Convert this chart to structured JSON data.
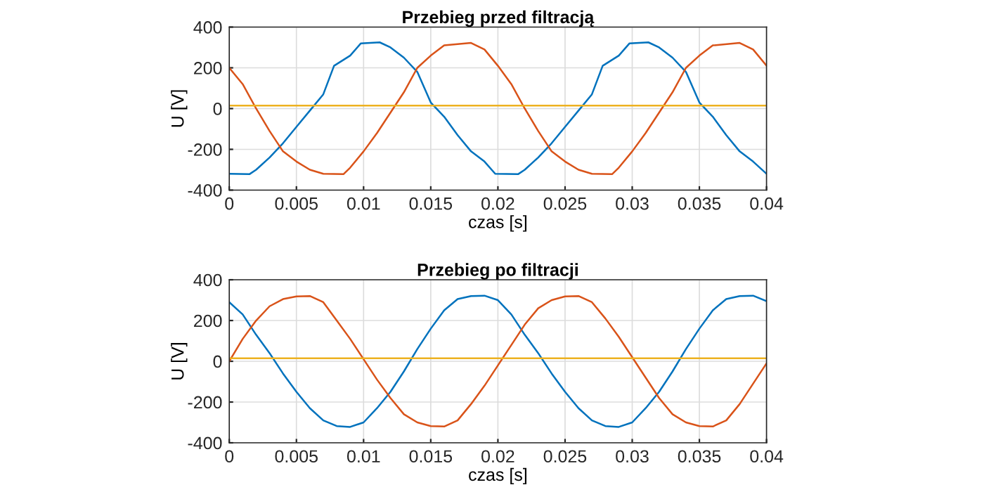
{
  "chart_data": [
    {
      "type": "line",
      "title": "Przebieg przed filtracją",
      "xlabel": "czas [s]",
      "ylabel": "U [V]",
      "xlim": [
        0,
        0.04
      ],
      "ylim": [
        -400,
        400
      ],
      "xticks": [
        0,
        0.005,
        0.01,
        0.015,
        0.02,
        0.025,
        0.03,
        0.035,
        0.04
      ],
      "yticks": [
        -400,
        -200,
        0,
        200,
        400
      ],
      "grid": true,
      "series": [
        {
          "color": "#0072bd",
          "x": [
            0,
            0.0015,
            0.002,
            0.003,
            0.004,
            0.005,
            0.006,
            0.007,
            0.0078,
            0.009,
            0.0098,
            0.0112,
            0.012,
            0.013,
            0.014,
            0.015,
            0.016,
            0.017,
            0.018,
            0.019,
            0.0198,
            0.0215,
            0.022,
            0.023,
            0.024,
            0.025,
            0.026,
            0.027,
            0.0278,
            0.029,
            0.0298,
            0.0312,
            0.032,
            0.033,
            0.034,
            0.035,
            0.036,
            0.037,
            0.038,
            0.039,
            0.04
          ],
          "values": [
            -320,
            -322,
            -300,
            -240,
            -170,
            -90,
            -10,
            70,
            210,
            260,
            320,
            325,
            300,
            250,
            180,
            30,
            -40,
            -130,
            -210,
            -260,
            -320,
            -322,
            -300,
            -240,
            -170,
            -90,
            -10,
            70,
            210,
            260,
            320,
            325,
            300,
            250,
            180,
            30,
            -40,
            -130,
            -210,
            -260,
            -320
          ]
        },
        {
          "color": "#d95319",
          "x": [
            0,
            0.001,
            0.002,
            0.003,
            0.004,
            0.005,
            0.006,
            0.007,
            0.0085,
            0.009,
            0.01,
            0.011,
            0.012,
            0.013,
            0.014,
            0.015,
            0.016,
            0.018,
            0.019,
            0.02,
            0.021,
            0.022,
            0.023,
            0.024,
            0.025,
            0.026,
            0.027,
            0.0285,
            0.029,
            0.03,
            0.031,
            0.032,
            0.033,
            0.034,
            0.035,
            0.036,
            0.038,
            0.039,
            0.04
          ],
          "values": [
            200,
            120,
            0,
            -110,
            -210,
            -260,
            -300,
            -320,
            -322,
            -290,
            -210,
            -120,
            -20,
            80,
            200,
            260,
            310,
            322,
            290,
            210,
            120,
            0,
            -110,
            -210,
            -260,
            -300,
            -320,
            -322,
            -290,
            -210,
            -120,
            -20,
            80,
            200,
            260,
            310,
            322,
            290,
            210
          ]
        },
        {
          "color": "#edb120",
          "x": [
            0,
            0.04
          ],
          "values": [
            15,
            15
          ]
        }
      ]
    },
    {
      "type": "line",
      "title": "Przebieg po filtracji",
      "xlabel": "czas [s]",
      "ylabel": "U [V]",
      "xlim": [
        0,
        0.04
      ],
      "ylim": [
        -400,
        400
      ],
      "xticks": [
        0,
        0.005,
        0.01,
        0.015,
        0.02,
        0.025,
        0.03,
        0.035,
        0.04
      ],
      "yticks": [
        -400,
        -200,
        0,
        200,
        400
      ],
      "grid": true,
      "series": [
        {
          "color": "#0072bd",
          "x": [
            0,
            0.001,
            0.002,
            0.003,
            0.004,
            0.005,
            0.006,
            0.007,
            0.008,
            0.009,
            0.01,
            0.011,
            0.012,
            0.013,
            0.014,
            0.015,
            0.016,
            0.017,
            0.018,
            0.019,
            0.02,
            0.021,
            0.022,
            0.023,
            0.024,
            0.025,
            0.026,
            0.027,
            0.028,
            0.029,
            0.03,
            0.031,
            0.032,
            0.033,
            0.034,
            0.035,
            0.036,
            0.037,
            0.038,
            0.039,
            0.04
          ],
          "values": [
            290,
            230,
            130,
            40,
            -60,
            -150,
            -230,
            -290,
            -318,
            -322,
            -300,
            -230,
            -150,
            -50,
            60,
            160,
            250,
            305,
            320,
            322,
            300,
            230,
            130,
            40,
            -60,
            -150,
            -230,
            -290,
            -318,
            -322,
            -300,
            -230,
            -150,
            -50,
            60,
            160,
            250,
            305,
            320,
            322,
            295
          ]
        },
        {
          "color": "#d95319",
          "x": [
            0,
            0.001,
            0.002,
            0.003,
            0.004,
            0.005,
            0.006,
            0.007,
            0.008,
            0.009,
            0.01,
            0.011,
            0.012,
            0.013,
            0.014,
            0.015,
            0.016,
            0.017,
            0.018,
            0.019,
            0.02,
            0.021,
            0.022,
            0.023,
            0.024,
            0.025,
            0.026,
            0.027,
            0.028,
            0.029,
            0.03,
            0.031,
            0.032,
            0.033,
            0.034,
            0.035,
            0.036,
            0.037,
            0.038,
            0.039,
            0.04
          ],
          "values": [
            0,
            110,
            200,
            270,
            305,
            318,
            320,
            290,
            200,
            110,
            10,
            -90,
            -180,
            -260,
            -300,
            -318,
            -320,
            -290,
            -210,
            -120,
            -20,
            80,
            180,
            260,
            300,
            318,
            320,
            290,
            210,
            120,
            20,
            -80,
            -180,
            -260,
            -300,
            -318,
            -320,
            -290,
            -210,
            -110,
            -10
          ]
        },
        {
          "color": "#edb120",
          "x": [
            0,
            0.04
          ],
          "values": [
            15,
            15
          ]
        }
      ]
    }
  ]
}
